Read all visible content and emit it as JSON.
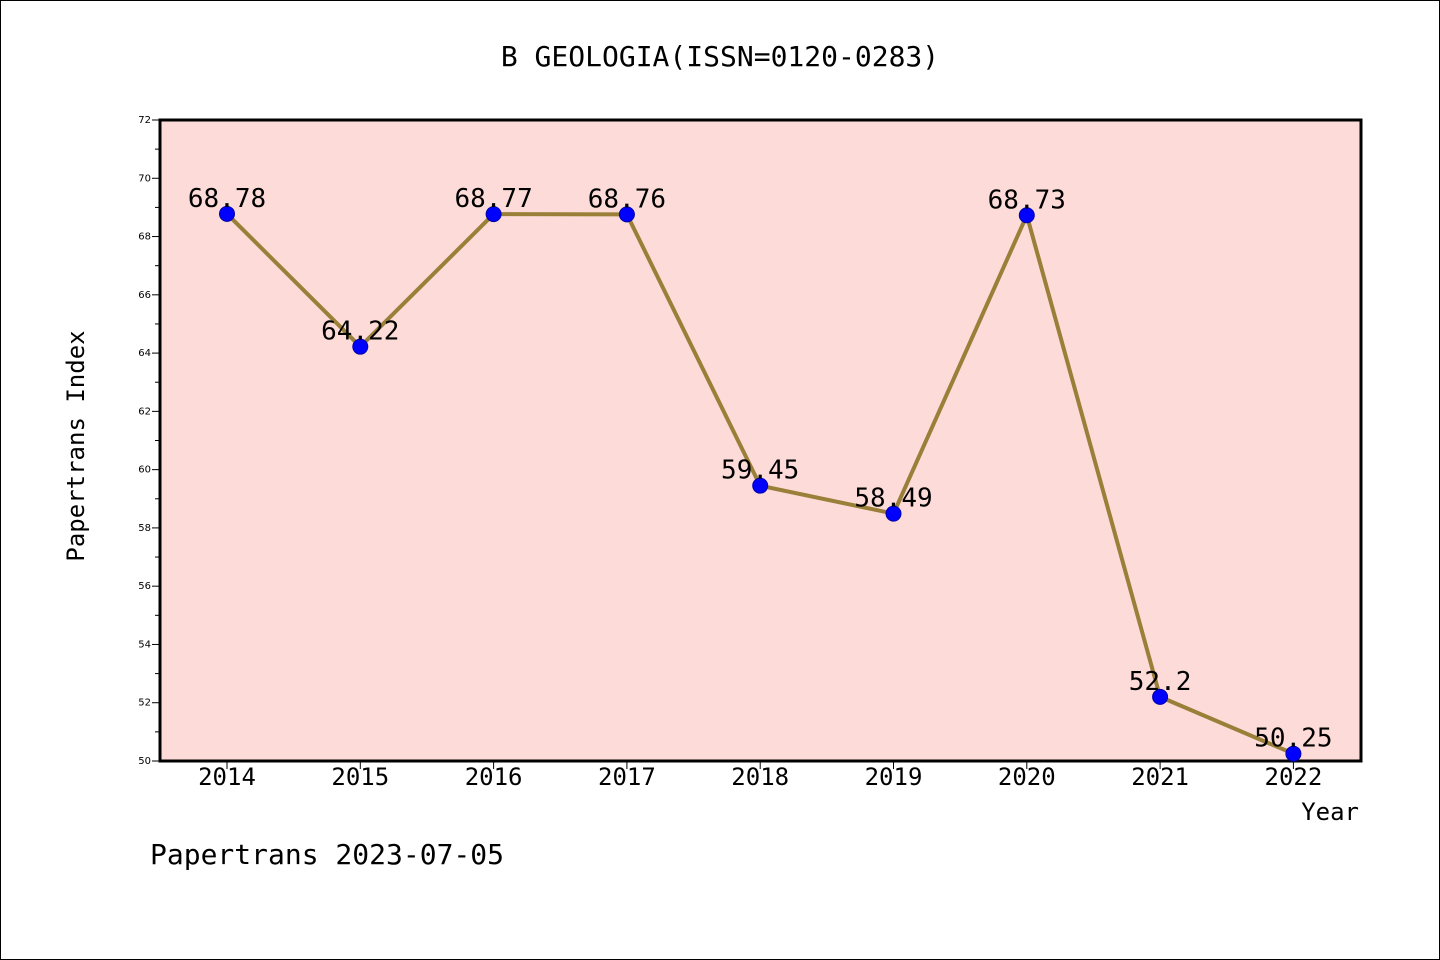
{
  "chart_data": {
    "type": "line",
    "title": "B GEOLOGIA(ISSN=0120-0283)",
    "xlabel": "Year",
    "ylabel": "Papertrans Index",
    "categories": [
      "2014",
      "2015",
      "2016",
      "2017",
      "2018",
      "2019",
      "2020",
      "2021",
      "2022"
    ],
    "values": [
      68.78,
      64.22,
      68.77,
      68.76,
      59.45,
      58.49,
      68.73,
      52.2,
      50.25
    ],
    "data_labels": [
      "68.78",
      "64.22",
      "68.77",
      "68.76",
      "59.45",
      "58.49",
      "68.73",
      "52.2",
      "50.25"
    ],
    "ylim": [
      50,
      72
    ],
    "yticks": [
      50,
      52,
      54,
      56,
      58,
      60,
      62,
      64,
      66,
      68,
      70,
      72
    ],
    "grid": false,
    "colors": {
      "plot_background": "#fddbd8",
      "line": "#9a7f39",
      "marker": "#0000ff"
    }
  },
  "footer": "Papertrans 2023-07-05"
}
